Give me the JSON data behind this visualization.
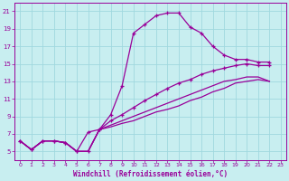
{
  "xlabel": "Windchill (Refroidissement éolien,°C)",
  "bg_color": "#c8eef0",
  "grid_color": "#a0d8df",
  "line_color": "#990099",
  "xlim": [
    -0.5,
    23.5
  ],
  "ylim": [
    4.0,
    22.0
  ],
  "xticks": [
    0,
    1,
    2,
    3,
    4,
    5,
    6,
    7,
    8,
    9,
    10,
    11,
    12,
    13,
    14,
    15,
    16,
    17,
    18,
    19,
    20,
    21,
    22,
    23
  ],
  "yticks": [
    5,
    7,
    9,
    11,
    13,
    15,
    17,
    19,
    21
  ],
  "curve1_x": [
    0,
    1,
    2,
    3,
    4,
    5,
    6,
    7,
    8,
    9,
    10,
    11,
    12,
    13,
    14,
    15,
    16,
    17,
    18,
    19,
    20,
    21,
    22
  ],
  "curve1_y": [
    6.2,
    5.2,
    6.2,
    6.2,
    6.0,
    5.0,
    7.2,
    7.5,
    9.2,
    12.5,
    18.5,
    19.5,
    20.5,
    20.8,
    20.8,
    19.2,
    18.5,
    17.0,
    16.0,
    15.5,
    15.5,
    15.2,
    15.2
  ],
  "curve2_x": [
    0,
    1,
    2,
    3,
    4,
    5,
    6,
    7,
    8,
    9,
    10,
    11,
    12,
    13,
    14,
    15,
    16,
    17,
    18,
    19,
    20,
    21,
    22
  ],
  "curve2_y": [
    6.2,
    5.2,
    6.2,
    6.2,
    6.0,
    5.0,
    5.0,
    7.5,
    8.5,
    9.2,
    10.0,
    10.8,
    11.5,
    12.2,
    12.8,
    13.2,
    13.8,
    14.2,
    14.5,
    14.8,
    15.0,
    14.8,
    14.8
  ],
  "curve3_x": [
    0,
    1,
    2,
    3,
    4,
    5,
    6,
    7,
    8,
    9,
    10,
    11,
    12,
    13,
    14,
    15,
    16,
    17,
    18,
    19,
    20,
    21,
    22
  ],
  "curve3_y": [
    6.2,
    5.2,
    6.2,
    6.2,
    6.0,
    5.0,
    5.0,
    7.5,
    8.0,
    8.5,
    9.0,
    9.5,
    10.0,
    10.5,
    11.0,
    11.5,
    12.0,
    12.5,
    13.0,
    13.2,
    13.5,
    13.5,
    13.0
  ],
  "curve4_x": [
    0,
    1,
    2,
    3,
    4,
    5,
    6,
    7,
    8,
    9,
    10,
    11,
    12,
    13,
    14,
    15,
    16,
    17,
    18,
    19,
    20,
    21,
    22
  ],
  "curve4_y": [
    6.2,
    5.2,
    6.2,
    6.2,
    6.0,
    5.0,
    5.0,
    7.5,
    7.8,
    8.2,
    8.5,
    9.0,
    9.5,
    9.8,
    10.2,
    10.8,
    11.2,
    11.8,
    12.2,
    12.8,
    13.0,
    13.2,
    13.0
  ]
}
